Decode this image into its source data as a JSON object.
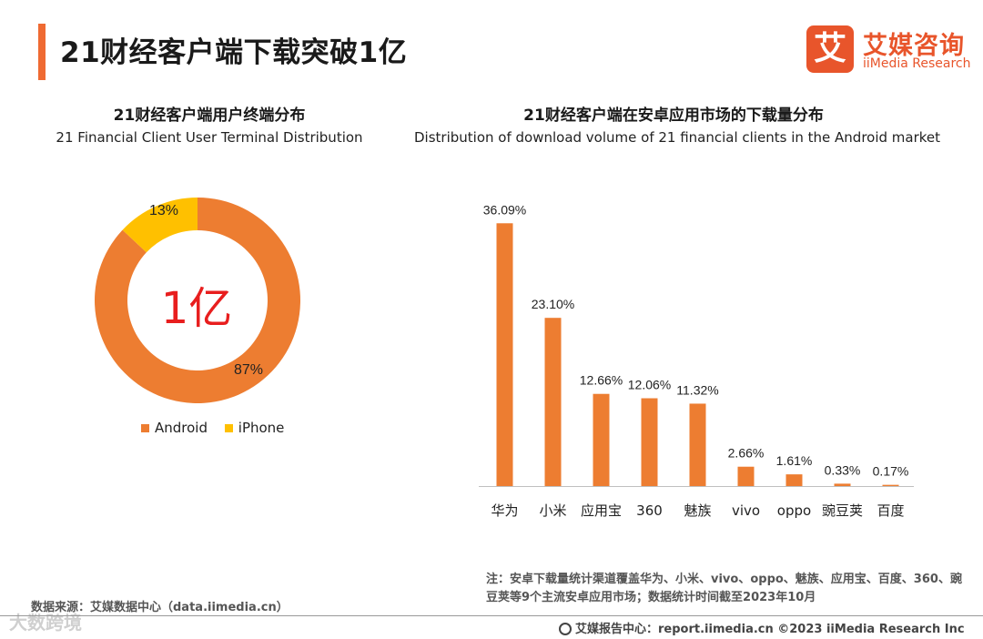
{
  "header": {
    "title": "21财经客户端下载突破1亿",
    "logo_mark": "艾",
    "logo_cn": "艾媒咨询",
    "logo_en": "iiMedia Research"
  },
  "left_panel": {
    "title_cn": "21财经客户端用户终端分布",
    "title_en": "21 Financial Client User Terminal Distribution"
  },
  "right_panel": {
    "title_cn": "21财经客户端在安卓应用市场的下载量分布",
    "title_en": "Distribution of download volume of 21 financial clients in the Android market"
  },
  "chart_data": [
    {
      "type": "pie",
      "variant": "donut",
      "center_label": "1亿",
      "slices": [
        {
          "name": "Android",
          "value": 87,
          "label": "87%",
          "color": "#ed7d31"
        },
        {
          "name": "iPhone",
          "value": 13,
          "label": "13%",
          "color": "#ffc000"
        }
      ],
      "legend": [
        "Android",
        "iPhone"
      ],
      "legend_position": "bottom"
    },
    {
      "type": "bar",
      "categories": [
        "华为",
        "小米",
        "应用宝",
        "360",
        "魅族",
        "vivo",
        "oppo",
        "豌豆荚",
        "百度"
      ],
      "values": [
        36.09,
        23.1,
        12.66,
        12.06,
        11.32,
        2.66,
        1.61,
        0.33,
        0.17
      ],
      "labels": [
        "36.09%",
        "23.10%",
        "12.66%",
        "12.06%",
        "11.32%",
        "2.66%",
        "1.61%",
        "0.33%",
        "0.17%"
      ],
      "unit": "%",
      "color": "#ed7d31",
      "ylim": [
        0,
        40
      ],
      "grid": false
    }
  ],
  "note": "注：安卓下载量统计渠道覆盖华为、小米、vivo、oppo、魅族、应用宝、百度、360、豌豆荚等9个主流安卓应用市场；数据统计时间截至2023年10月",
  "source": "数据来源：艾媒数据中心（data.iimedia.cn）",
  "footer": "艾媒报告中心：report.iimedia.cn  ©2023  iiMedia Research  Inc",
  "watermark": "大数跨境"
}
